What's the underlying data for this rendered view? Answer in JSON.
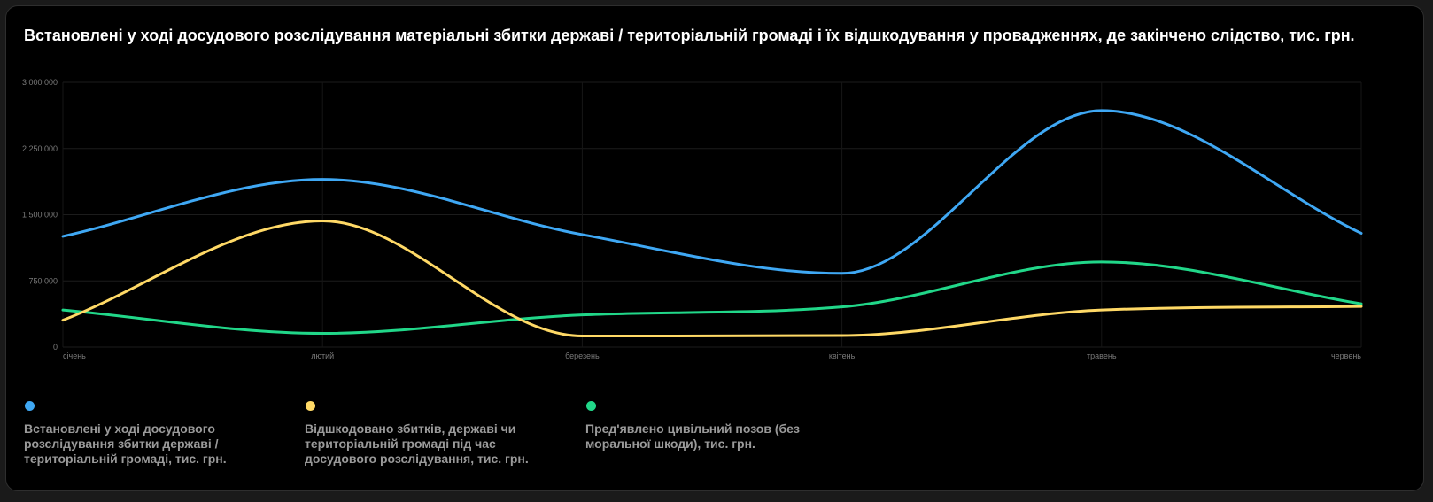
{
  "chart_data": {
    "type": "line",
    "title": "Встановлені у ході досудового розслідування матеріальні збитки державі / територіальній громаді і їх відшкодування у провадженнях, де закінчено слідство, тис. грн.",
    "categories": [
      "січень",
      "лютий",
      "березень",
      "квітень",
      "травень",
      "червень"
    ],
    "ylim": [
      0,
      3000000
    ],
    "yticks": [
      0,
      750000,
      1500000,
      2250000,
      3000000
    ],
    "ytick_labels": [
      "0",
      "750 000",
      "1 500 000",
      "2 250 000",
      "3 000 000"
    ],
    "grid": true,
    "legend_position": "bottom-left",
    "series": [
      {
        "name": "Встановлені у ході досудового розслідування збитки державі / територіальній громаді, тис. грн.",
        "color": "#3fa8f4",
        "values": [
          1255000,
          1900000,
          1275000,
          835000,
          2680000,
          1290000
        ]
      },
      {
        "name": "Відшкодовано збитків, державі чи територіальній громаді під час досудового розслідування, тис. грн.",
        "color": "#ffd966",
        "values": [
          305000,
          1430000,
          125000,
          130000,
          420000,
          460000
        ]
      },
      {
        "name": "Пред'явлено цивільний позов (без моральної шкоди), тис. грн.",
        "color": "#21d789",
        "values": [
          420000,
          155000,
          365000,
          455000,
          965000,
          490000
        ]
      }
    ]
  }
}
